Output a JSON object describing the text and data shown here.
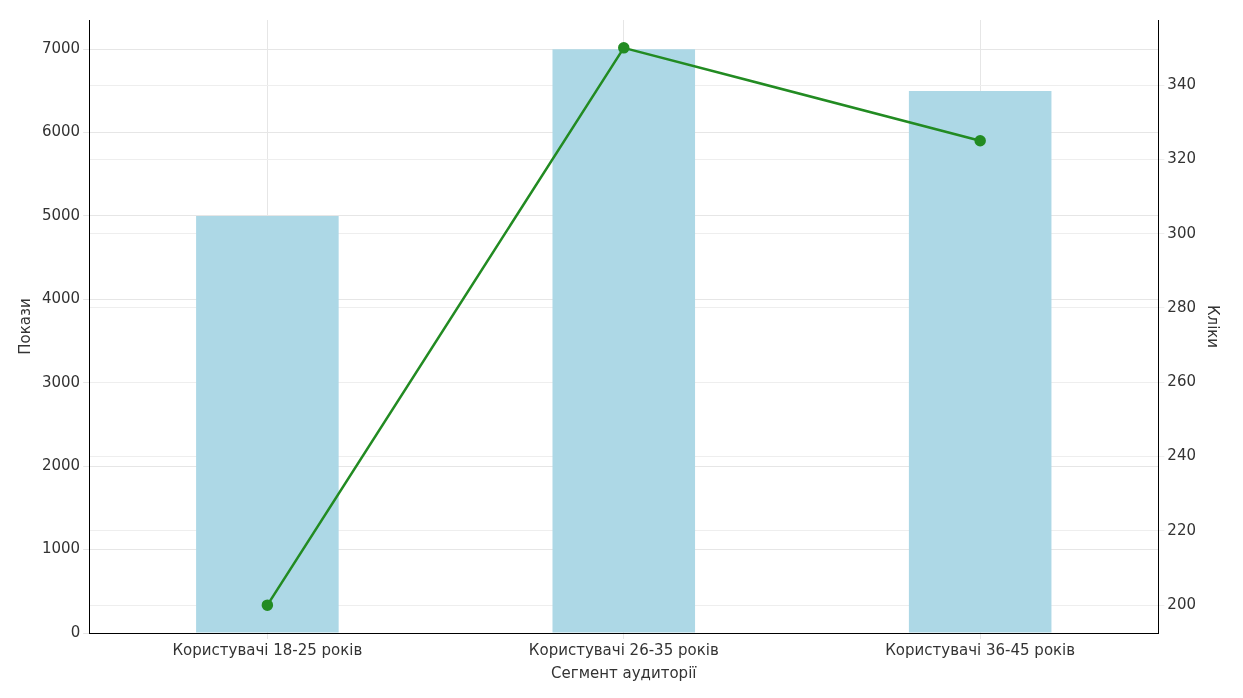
{
  "chart_data": {
    "type": "bar",
    "xlabel": "Сегмент аудиторії",
    "ylabel": "Покази",
    "y2label": "Кліки",
    "categories": [
      "Користувачі 18-25 років",
      "Користувачі 26-35 років",
      "Користувачі 36-45 років"
    ],
    "series": [
      {
        "color": "#add8e6",
        "values": [
          5000,
          7000,
          6500
        ]
      },
      {
        "type": "line",
        "axis": "y2",
        "color": "#228b22",
        "values": [
          200,
          350,
          325
        ]
      }
    ],
    "ylim": [
      0,
      7350
    ],
    "yticks": [
      0,
      1000,
      2000,
      3000,
      4000,
      5000,
      6000,
      7000
    ],
    "y2lim": [
      192.5,
      357.5
    ],
    "y2ticks": [
      200,
      220,
      240,
      260,
      280,
      300,
      320,
      340
    ],
    "grid": true,
    "marker": "circle"
  }
}
